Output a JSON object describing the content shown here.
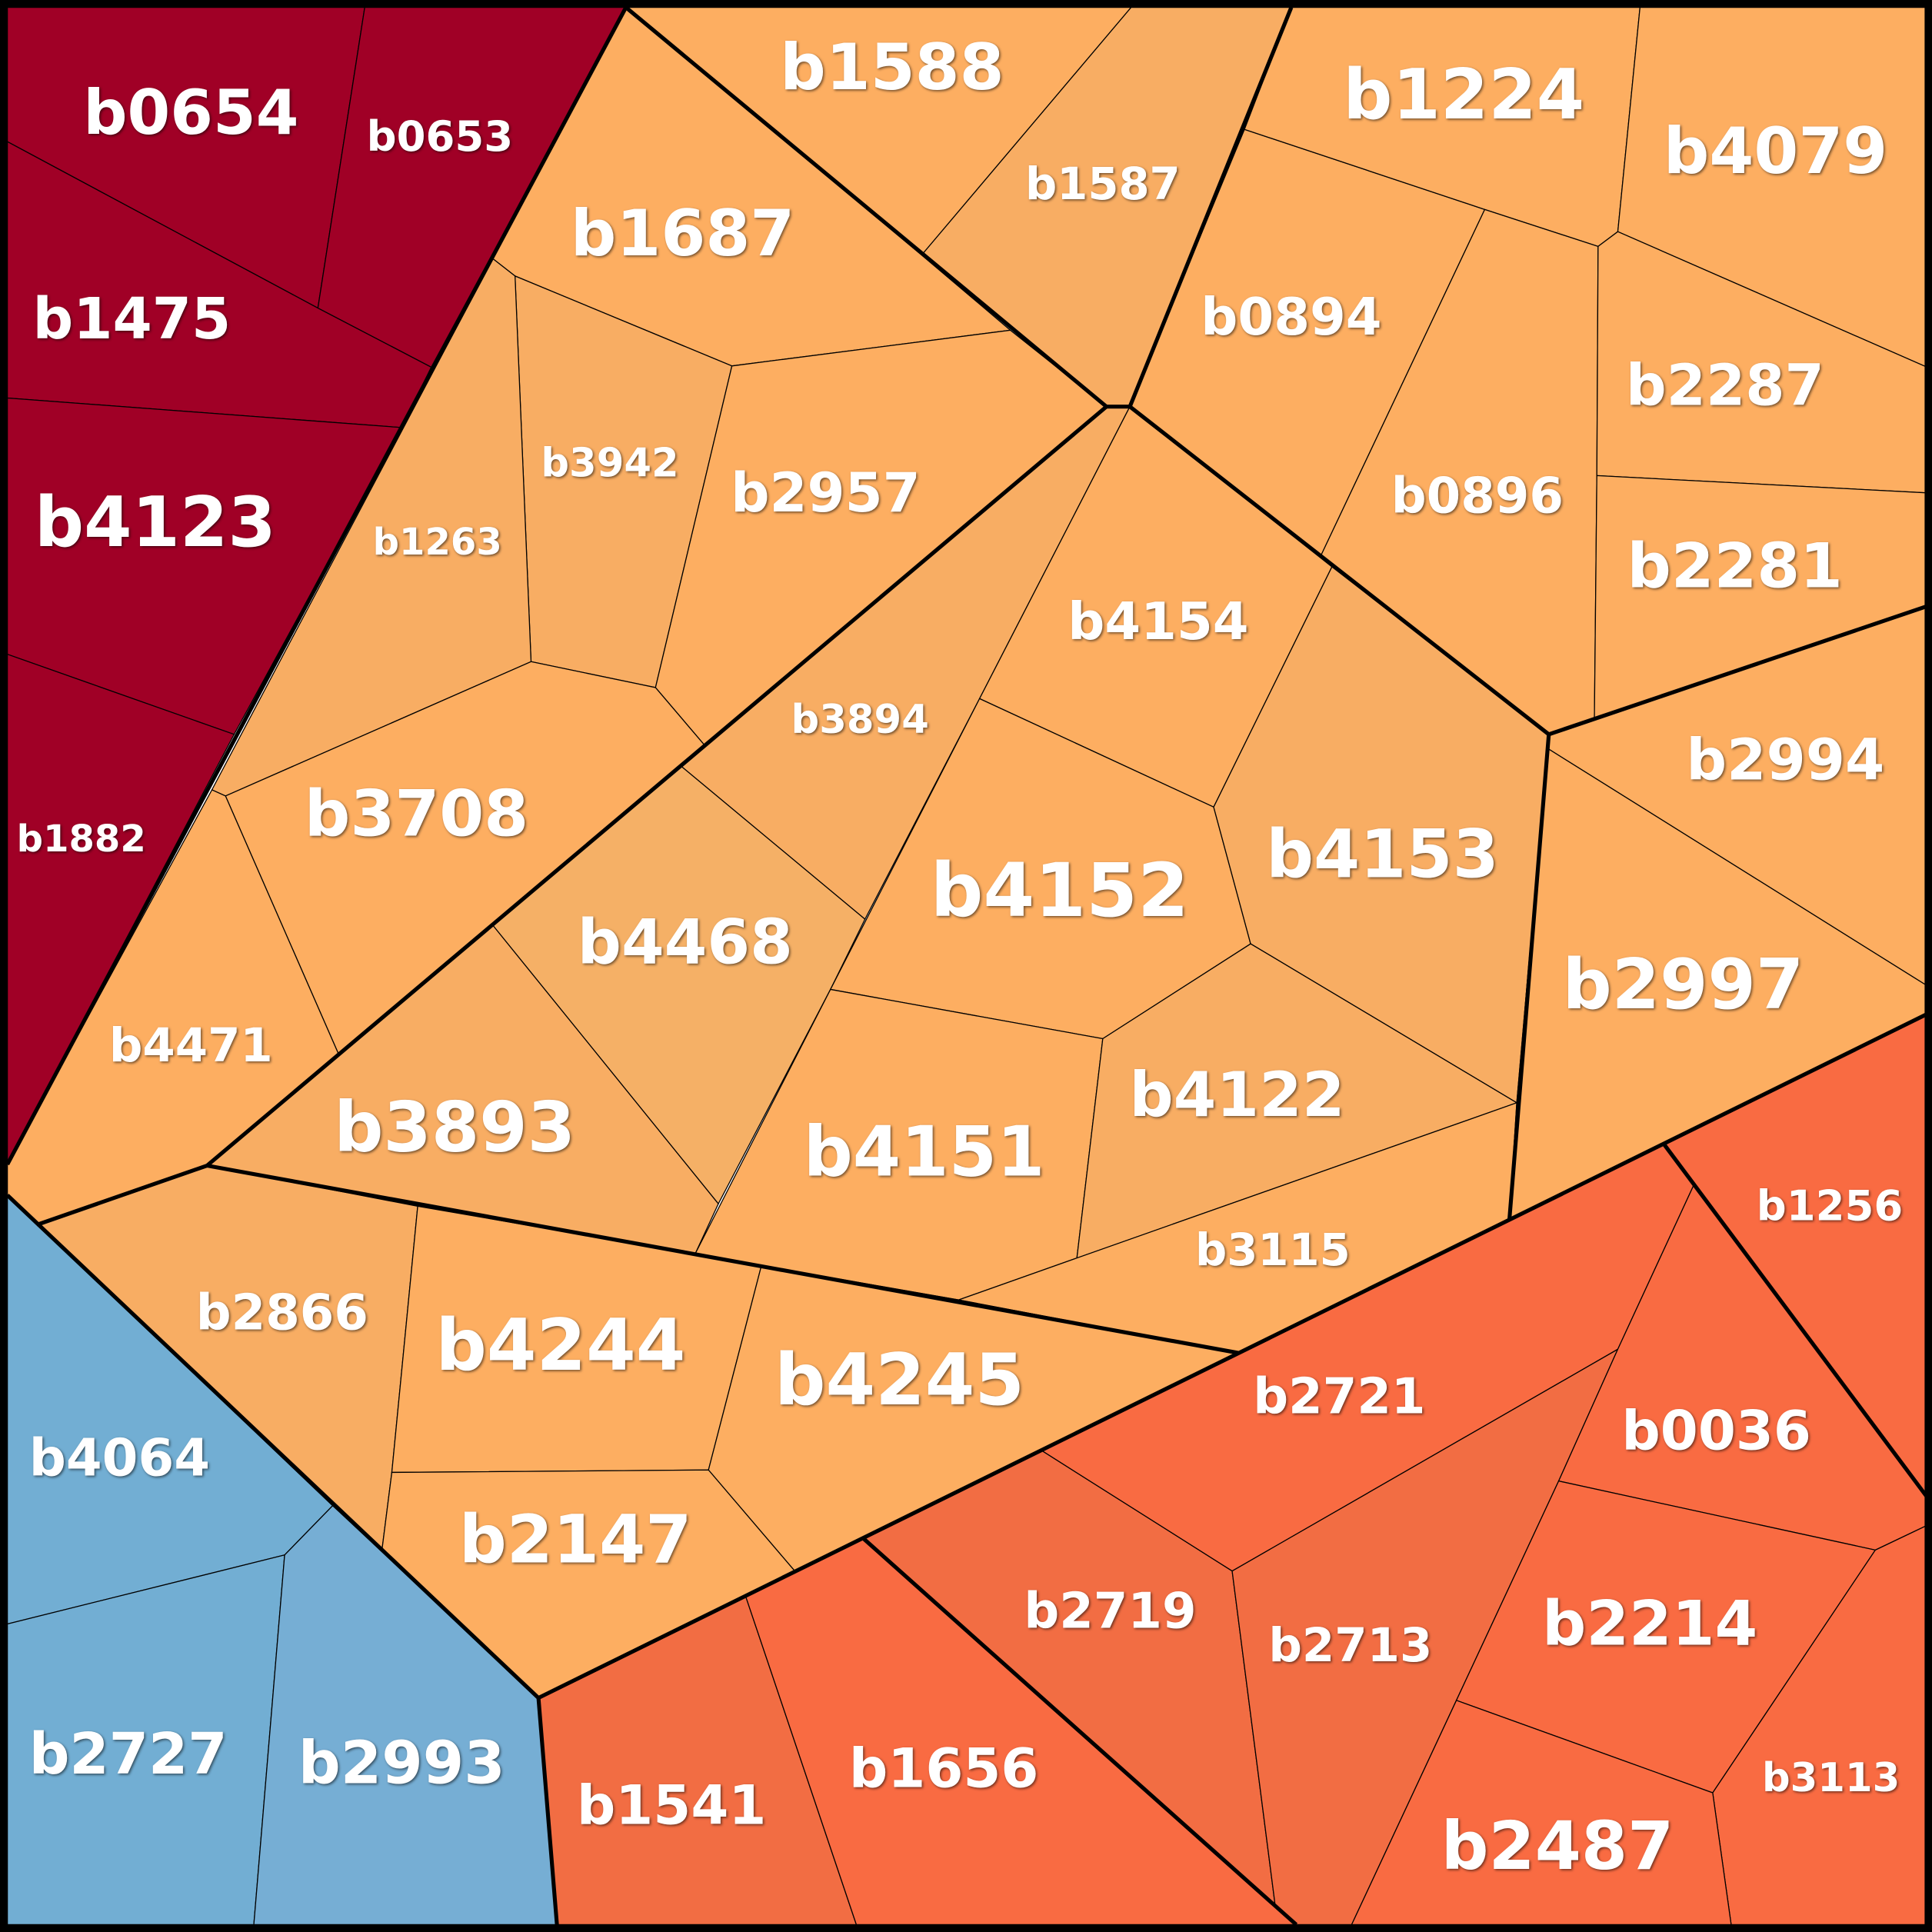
{
  "cells": [
    {
      "label": "b0654"
    },
    {
      "label": "b0653"
    },
    {
      "label": "b1475"
    },
    {
      "label": "b4123"
    },
    {
      "label": "b1882"
    },
    {
      "label": "b4064"
    },
    {
      "label": "b2727"
    },
    {
      "label": "b2993"
    },
    {
      "label": "b1541"
    },
    {
      "label": "b1656"
    },
    {
      "label": "b2719"
    },
    {
      "label": "b2713"
    },
    {
      "label": "b2721"
    },
    {
      "label": "b1256"
    },
    {
      "label": "b0036"
    },
    {
      "label": "b2214"
    },
    {
      "label": "b3113"
    },
    {
      "label": "b2487"
    },
    {
      "label": "b1588"
    },
    {
      "label": "b1587"
    },
    {
      "label": "b1687"
    },
    {
      "label": "b3942"
    },
    {
      "label": "b1263"
    },
    {
      "label": "b2957"
    },
    {
      "label": "b3708"
    },
    {
      "label": "b4471"
    },
    {
      "label": "b3894"
    },
    {
      "label": "b4468"
    },
    {
      "label": "b3893"
    },
    {
      "label": "b4154"
    },
    {
      "label": "b4152"
    },
    {
      "label": "b4153"
    },
    {
      "label": "b4151"
    },
    {
      "label": "b4122"
    },
    {
      "label": "b3115"
    },
    {
      "label": "b0894"
    },
    {
      "label": "b1224"
    },
    {
      "label": "b4079"
    },
    {
      "label": "b0896"
    },
    {
      "label": "b2287"
    },
    {
      "label": "b2281"
    },
    {
      "label": "b2994"
    },
    {
      "label": "b2997"
    },
    {
      "label": "b2866"
    },
    {
      "label": "b4244"
    },
    {
      "label": "b4245"
    },
    {
      "label": "b2147"
    }
  ]
}
